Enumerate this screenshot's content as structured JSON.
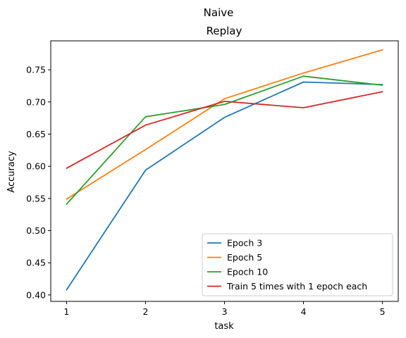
{
  "chart_data": {
    "type": "line",
    "suptitle": "Naive",
    "title": "Replay",
    "xlabel": "task",
    "ylabel": "Accuracy",
    "x": [
      1,
      2,
      3,
      4,
      5
    ],
    "x_ticks": [
      "1",
      "2",
      "3",
      "4",
      "5"
    ],
    "y_ticks": [
      "0.40",
      "0.45",
      "0.50",
      "0.55",
      "0.60",
      "0.65",
      "0.70",
      "0.75"
    ],
    "y_tick_values": [
      0.4,
      0.45,
      0.5,
      0.55,
      0.6,
      0.65,
      0.7,
      0.75
    ],
    "xlim": [
      0.8,
      5.2
    ],
    "ylim": [
      0.39,
      0.795
    ],
    "grid": false,
    "legend_position": "lower-right",
    "series": [
      {
        "name": "Epoch 3",
        "color": "#1f77b4",
        "values": [
          0.408,
          0.594,
          0.676,
          0.731,
          0.727
        ]
      },
      {
        "name": "Epoch 5",
        "color": "#ff7f0e",
        "values": [
          0.549,
          0.626,
          0.705,
          0.745,
          0.781
        ]
      },
      {
        "name": "Epoch 10",
        "color": "#2ca02c",
        "values": [
          0.541,
          0.677,
          0.696,
          0.74,
          0.726
        ]
      },
      {
        "name": "Train 5 times with 1 epoch each",
        "color": "#d62728",
        "values": [
          0.597,
          0.664,
          0.701,
          0.691,
          0.716
        ]
      }
    ]
  }
}
